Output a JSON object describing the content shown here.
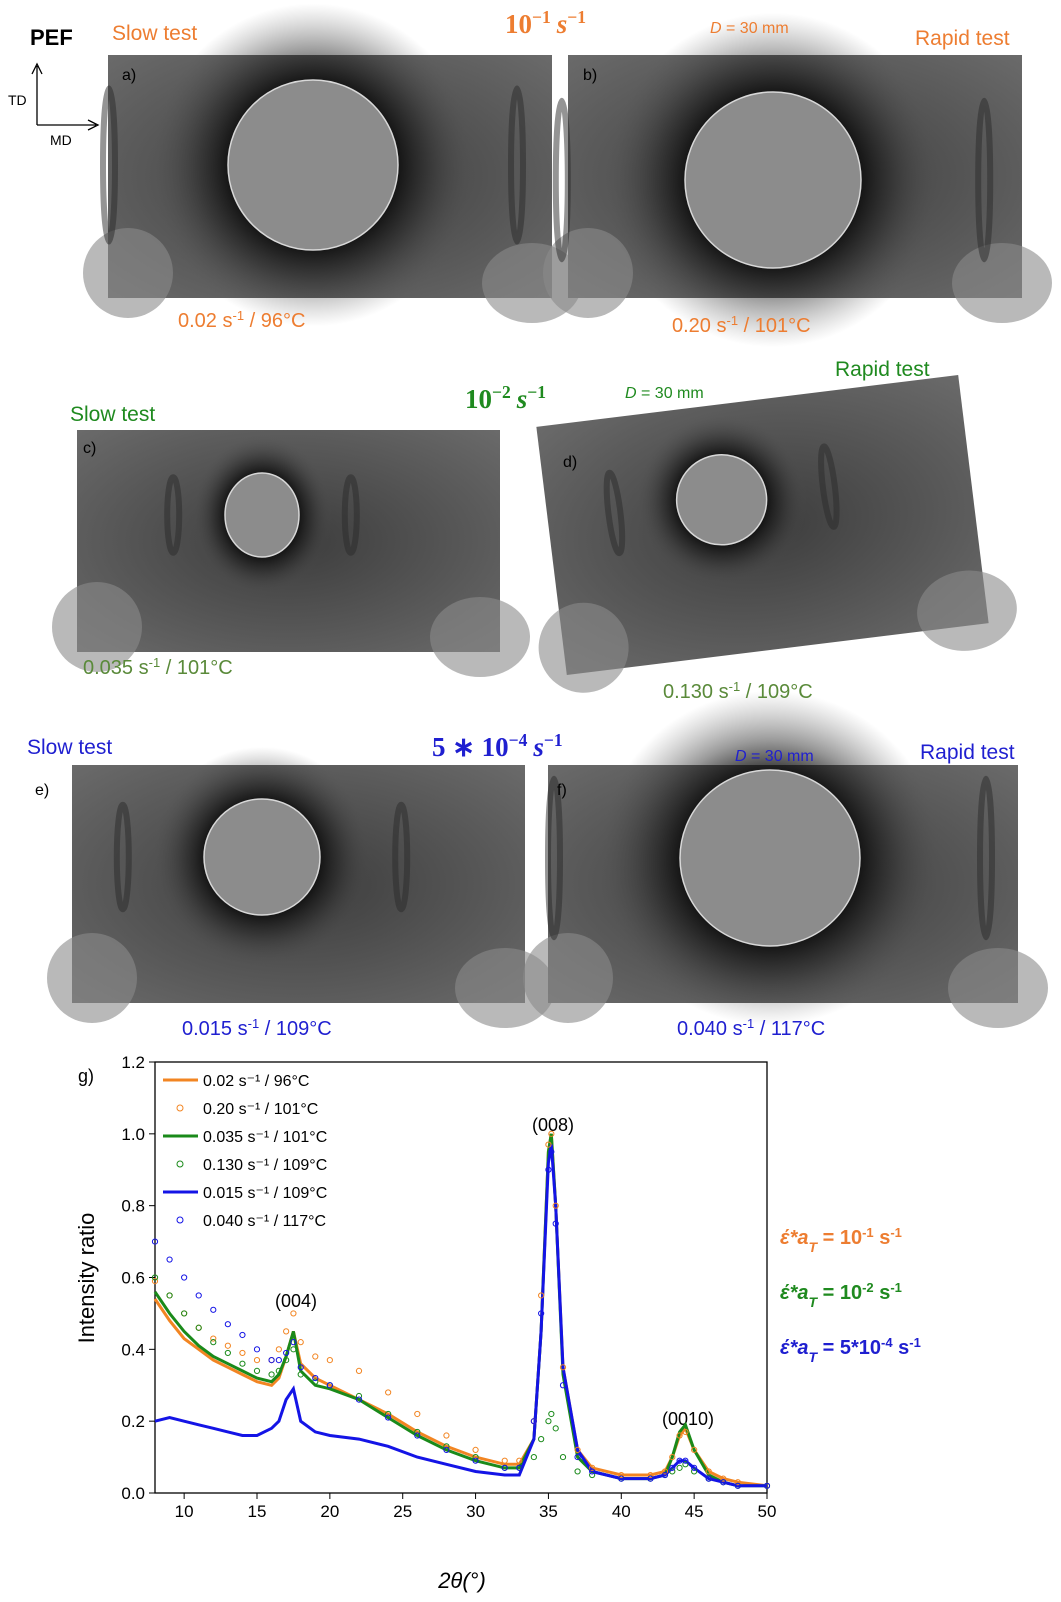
{
  "figure": {
    "material": "PEF",
    "axes": {
      "td": "TD",
      "md": "MD"
    },
    "rows": [
      {
        "slow": "Slow test",
        "rapid": "Rapid test",
        "rate": {
          "base": "10",
          "exp": "−1",
          "unit": "s",
          "unit_exp": "−1"
        },
        "distance": {
          "var": "D",
          "rest": " = 30 mm"
        },
        "panels": [
          {
            "label": "a)",
            "caption": {
              "text": "0.02 s",
              "sup": "-1",
              "rest": " / 96°C"
            }
          },
          {
            "label": "b)",
            "caption": {
              "text": "0.20 s",
              "sup": "-1",
              "rest": " / 101°C"
            }
          }
        ]
      },
      {
        "slow": "Slow test",
        "rapid": "Rapid test",
        "rate": {
          "base": "10",
          "exp": "−2",
          "unit": "s",
          "unit_exp": "−1"
        },
        "distance": {
          "var": "D",
          "rest": " = 30 mm"
        },
        "panels": [
          {
            "label": "c)",
            "caption": {
              "text": "0.035 s",
              "sup": "-1",
              "rest": " / 101°C"
            }
          },
          {
            "label": "d)",
            "caption": {
              "text": "0.130 s",
              "sup": "-1",
              "rest": " / 109°C"
            }
          }
        ]
      },
      {
        "slow": "Slow test",
        "rapid": "Rapid test",
        "rate": {
          "pre": "5 ∗ ",
          "base": "10",
          "exp": "−4",
          "unit": "s",
          "unit_exp": "−1"
        },
        "distance": {
          "var": "D",
          "rest": " = 30 mm"
        },
        "panels": [
          {
            "label": "e)",
            "caption": {
              "text": "0.015 s",
              "sup": "-1",
              "rest": " / 109°C"
            }
          },
          {
            "label": "f)",
            "caption": {
              "text": "0.040 s",
              "sup": "-1",
              "rest": " / 117°C"
            }
          }
        ]
      }
    ],
    "rate_notes": [
      {
        "text": "έ*a",
        "sub": "T",
        "rest": " = 10",
        "sup": "-1",
        "unit": " s",
        "sup2": "-1"
      },
      {
        "text": "έ*a",
        "sub": "T",
        "rest": " = 10",
        "sup": "-2",
        "unit": " s",
        "sup2": "-1"
      },
      {
        "text": "έ*a",
        "sub": "T",
        "rest": " = 5*10",
        "sup": "-4",
        "unit": " s",
        "sup2": "-1"
      }
    ]
  },
  "chart_data": {
    "type": "line",
    "panel_label": "g)",
    "x_label": "2θ(°)",
    "y_label": "Intensity ratio",
    "annotations": [
      "(004)",
      "(008)",
      "(0010)"
    ],
    "xlim": [
      8,
      50
    ],
    "ylim": [
      0,
      1.2
    ],
    "xticks": [
      10,
      15,
      20,
      25,
      30,
      35,
      40,
      45,
      50
    ],
    "yticks": [
      {
        "value": 0,
        "label": "0.0"
      },
      0.2,
      0.4,
      0.6,
      0.8,
      {
        "value": 1,
        "label": "1.0"
      },
      1.2
    ],
    "grid": false,
    "legend": "upper left",
    "x": [
      8,
      9,
      10,
      11,
      12,
      13,
      14,
      15,
      16,
      16.5,
      17,
      17.5,
      18,
      19,
      20,
      22,
      24,
      26,
      28,
      30,
      32,
      33,
      34,
      34.5,
      35,
      35.2,
      35.5,
      36,
      37,
      38,
      40,
      42,
      43,
      43.5,
      44,
      44.4,
      45,
      46,
      47,
      48,
      50
    ],
    "series": [
      {
        "name": "0.02 s⁻¹ / 96°C",
        "color": "#f28522",
        "style": "line",
        "values": [
          0.54,
          0.48,
          0.43,
          0.4,
          0.37,
          0.35,
          0.33,
          0.31,
          0.3,
          0.32,
          0.38,
          0.45,
          0.36,
          0.32,
          0.3,
          0.26,
          0.22,
          0.17,
          0.13,
          0.1,
          0.08,
          0.08,
          0.15,
          0.45,
          0.95,
          1.0,
          0.8,
          0.35,
          0.12,
          0.07,
          0.05,
          0.05,
          0.06,
          0.1,
          0.16,
          0.18,
          0.12,
          0.06,
          0.04,
          0.03,
          0.02
        ]
      },
      {
        "name": "0.20 s⁻¹ / 101°C",
        "color": "#f28522",
        "style": "circle",
        "values": [
          0.59,
          0.55,
          0.5,
          0.46,
          0.43,
          0.41,
          0.39,
          0.37,
          0.37,
          0.4,
          0.45,
          0.5,
          0.42,
          0.38,
          0.37,
          0.34,
          0.28,
          0.22,
          0.16,
          0.12,
          0.09,
          0.09,
          0.2,
          0.55,
          0.97,
          1.0,
          0.8,
          0.35,
          0.12,
          0.07,
          0.05,
          0.05,
          0.06,
          0.1,
          0.16,
          0.17,
          0.12,
          0.06,
          0.04,
          0.03,
          0.02
        ]
      },
      {
        "name": "0.035 s⁻¹ / 101°C",
        "color": "#1a8a1a",
        "style": "line",
        "values": [
          0.56,
          0.5,
          0.45,
          0.41,
          0.38,
          0.36,
          0.34,
          0.32,
          0.31,
          0.33,
          0.38,
          0.45,
          0.34,
          0.3,
          0.29,
          0.26,
          0.21,
          0.16,
          0.12,
          0.09,
          0.07,
          0.07,
          0.15,
          0.45,
          0.95,
          1.0,
          0.8,
          0.33,
          0.1,
          0.06,
          0.04,
          0.04,
          0.05,
          0.1,
          0.17,
          0.19,
          0.12,
          0.05,
          0.03,
          0.02,
          0.02
        ]
      },
      {
        "name": "0.130 s⁻¹ / 109°C",
        "color": "#1a8a1a",
        "style": "circle",
        "values": [
          0.6,
          0.55,
          0.5,
          0.46,
          0.42,
          0.39,
          0.36,
          0.34,
          0.33,
          0.34,
          0.37,
          0.4,
          0.33,
          0.31,
          0.3,
          0.27,
          0.22,
          0.17,
          0.13,
          0.1,
          0.07,
          0.07,
          0.1,
          0.15,
          0.2,
          0.22,
          0.18,
          0.1,
          0.06,
          0.05,
          0.04,
          0.04,
          0.05,
          0.06,
          0.07,
          0.08,
          0.06,
          0.04,
          0.03,
          0.02,
          0.02
        ]
      },
      {
        "name": "0.015 s⁻¹ / 109°C",
        "color": "#1414e6",
        "style": "line",
        "values": [
          0.2,
          0.21,
          0.2,
          0.19,
          0.18,
          0.17,
          0.16,
          0.16,
          0.18,
          0.2,
          0.26,
          0.29,
          0.2,
          0.17,
          0.16,
          0.15,
          0.13,
          0.1,
          0.08,
          0.06,
          0.05,
          0.05,
          0.15,
          0.45,
          0.92,
          0.97,
          0.8,
          0.35,
          0.12,
          0.06,
          0.04,
          0.04,
          0.05,
          0.07,
          0.09,
          0.09,
          0.07,
          0.04,
          0.03,
          0.02,
          0.02
        ]
      },
      {
        "name": "0.040 s⁻¹ / 117°C",
        "color": "#1414e6",
        "style": "circle",
        "values": [
          0.7,
          0.65,
          0.6,
          0.55,
          0.51,
          0.47,
          0.44,
          0.4,
          0.37,
          0.37,
          0.39,
          0.42,
          0.35,
          0.32,
          0.3,
          0.26,
          0.21,
          0.16,
          0.12,
          0.09,
          0.07,
          0.07,
          0.2,
          0.5,
          0.9,
          0.95,
          0.75,
          0.3,
          0.1,
          0.06,
          0.04,
          0.04,
          0.05,
          0.07,
          0.09,
          0.09,
          0.07,
          0.04,
          0.03,
          0.02,
          0.02
        ]
      }
    ]
  }
}
